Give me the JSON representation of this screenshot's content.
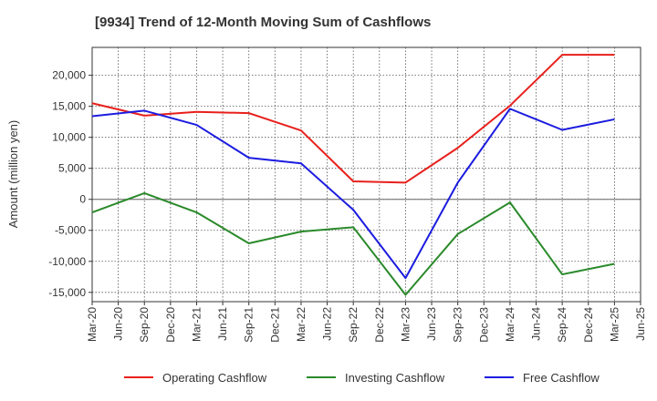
{
  "chart_data": {
    "type": "line",
    "title": "[9934]  Trend of 12-Month Moving Sum of Cashflows",
    "xlabel": "",
    "ylabel": "Amount (million yen)",
    "x_ticks": [
      "Mar-20",
      "Jun-20",
      "Sep-20",
      "Dec-20",
      "Mar-21",
      "Jun-21",
      "Sep-21",
      "Dec-21",
      "Mar-22",
      "Jun-22",
      "Sep-22",
      "Dec-22",
      "Mar-23",
      "Jun-23",
      "Sep-23",
      "Dec-23",
      "Mar-24",
      "Jun-24",
      "Sep-24",
      "Dec-24",
      "Mar-25",
      "Jun-25"
    ],
    "ylim": [
      -16500,
      24500
    ],
    "y_ticks": [
      -15000,
      -10000,
      -5000,
      0,
      5000,
      10000,
      15000,
      20000
    ],
    "y_tick_labels": [
      "-15,000",
      "-10,000",
      "-5,000",
      "0",
      "5,000",
      "10,000",
      "15,000",
      "20,000"
    ],
    "grid": true,
    "legend_position": "bottom",
    "series": [
      {
        "name": "Operating Cashflow",
        "color": "#e8201c",
        "points": [
          {
            "x": "Mar-20",
            "y": 15500
          },
          {
            "x": "Sep-20",
            "y": 13500
          },
          {
            "x": "Mar-21",
            "y": 14100
          },
          {
            "x": "Sep-21",
            "y": 13900
          },
          {
            "x": "Mar-22",
            "y": 11100
          },
          {
            "x": "Sep-22",
            "y": 2900
          },
          {
            "x": "Mar-23",
            "y": 2700
          },
          {
            "x": "Sep-23",
            "y": 8300
          },
          {
            "x": "Mar-24",
            "y": 15100
          },
          {
            "x": "Sep-24",
            "y": 23300
          },
          {
            "x": "Mar-25",
            "y": 23300
          }
        ]
      },
      {
        "name": "Investing Cashflow",
        "color": "#2a8a2a",
        "points": [
          {
            "x": "Mar-20",
            "y": -2100
          },
          {
            "x": "Sep-20",
            "y": 1000
          },
          {
            "x": "Mar-21",
            "y": -2100
          },
          {
            "x": "Sep-21",
            "y": -7100
          },
          {
            "x": "Mar-22",
            "y": -5200
          },
          {
            "x": "Sep-22",
            "y": -4500
          },
          {
            "x": "Mar-23",
            "y": -15400
          },
          {
            "x": "Sep-23",
            "y": -5600
          },
          {
            "x": "Mar-24",
            "y": -500
          },
          {
            "x": "Sep-24",
            "y": -12100
          },
          {
            "x": "Mar-25",
            "y": -10400
          }
        ]
      },
      {
        "name": "Free Cashflow",
        "color": "#1c1ce0",
        "points": [
          {
            "x": "Mar-20",
            "y": 13400
          },
          {
            "x": "Sep-20",
            "y": 14300
          },
          {
            "x": "Mar-21",
            "y": 12000
          },
          {
            "x": "Sep-21",
            "y": 6700
          },
          {
            "x": "Mar-22",
            "y": 5800
          },
          {
            "x": "Sep-22",
            "y": -1700
          },
          {
            "x": "Mar-23",
            "y": -12700
          },
          {
            "x": "Sep-23",
            "y": 2700
          },
          {
            "x": "Mar-24",
            "y": 14600
          },
          {
            "x": "Sep-24",
            "y": 11200
          },
          {
            "x": "Mar-25",
            "y": 12900
          }
        ]
      }
    ]
  }
}
